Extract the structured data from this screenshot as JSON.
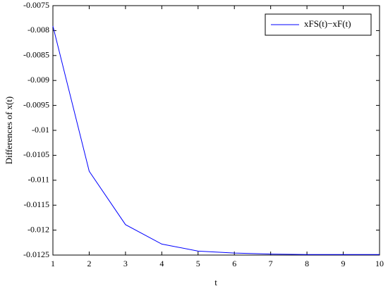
{
  "chart_data": {
    "type": "line",
    "x_label": "t",
    "y_label": "Differences of x(t)",
    "x": [
      1,
      2,
      3,
      4,
      5,
      6,
      7,
      8,
      9,
      10
    ],
    "series": [
      {
        "name": "xFS(t)−xF(t)",
        "color": "#0000ff",
        "values": [
          -0.00791,
          -0.01082,
          -0.01189,
          -0.01228,
          -0.01242,
          -0.01246,
          -0.01248,
          -0.01249,
          -0.01249,
          -0.01249
        ]
      }
    ],
    "xlim": [
      1,
      10
    ],
    "xticks": [
      1,
      2,
      3,
      4,
      5,
      6,
      7,
      8,
      9,
      10
    ],
    "ylim": [
      -0.0125,
      -0.0075
    ],
    "yticks": [
      -0.0125,
      -0.012,
      -0.0115,
      -0.011,
      -0.0105,
      -0.01,
      -0.0095,
      -0.009,
      -0.0085,
      -0.008,
      -0.0075
    ],
    "legend": "top-right"
  }
}
